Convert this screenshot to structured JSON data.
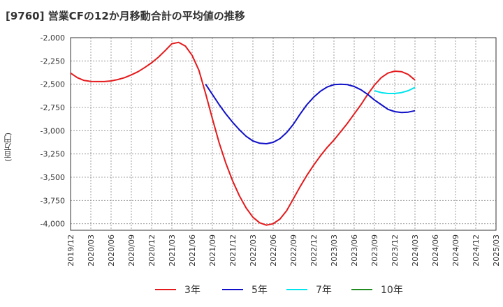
{
  "chart_data": {
    "type": "line",
    "title": "[9760]  営業CFの12か月移動合計の平均値の推移",
    "ylabel": "(百万円)",
    "xlabel": "",
    "ylim": [
      -4070,
      -2000
    ],
    "yticks": [
      -2000,
      -2250,
      -2500,
      -2750,
      -3000,
      -3250,
      -3500,
      -3750,
      -4000
    ],
    "ytick_labels": [
      "-2,000",
      "-2,250",
      "-2,500",
      "-2,750",
      "-3,000",
      "-3,250",
      "-3,500",
      "-3,750",
      "-4,000"
    ],
    "xticks": [
      "2019/12",
      "2020/03",
      "2020/06",
      "2020/09",
      "2020/12",
      "2021/03",
      "2021/06",
      "2021/09",
      "2021/12",
      "2022/03",
      "2022/06",
      "2022/09",
      "2022/12",
      "2023/03",
      "2023/06",
      "2023/09",
      "2023/12",
      "2024/03",
      "2024/06",
      "2024/09",
      "2024/12",
      "2025/03"
    ],
    "grid": true,
    "legend_position": "bottom",
    "series": [
      {
        "name": "3年",
        "color": "#e41a1c",
        "points": [
          [
            "2019/12",
            -2380
          ],
          [
            "2020/01",
            -2430
          ],
          [
            "2020/02",
            -2460
          ],
          [
            "2020/03",
            -2470
          ],
          [
            "2020/04",
            -2472
          ],
          [
            "2020/05",
            -2472
          ],
          [
            "2020/06",
            -2465
          ],
          [
            "2020/07",
            -2450
          ],
          [
            "2020/08",
            -2430
          ],
          [
            "2020/09",
            -2400
          ],
          [
            "2020/10",
            -2365
          ],
          [
            "2020/11",
            -2320
          ],
          [
            "2020/12",
            -2270
          ],
          [
            "2021/01",
            -2210
          ],
          [
            "2021/02",
            -2140
          ],
          [
            "2021/03",
            -2065
          ],
          [
            "2021/04",
            -2050
          ],
          [
            "2021/05",
            -2090
          ],
          [
            "2021/06",
            -2190
          ],
          [
            "2021/07",
            -2350
          ],
          [
            "2021/08",
            -2600
          ],
          [
            "2021/09",
            -2870
          ],
          [
            "2021/10",
            -3130
          ],
          [
            "2021/11",
            -3350
          ],
          [
            "2021/12",
            -3540
          ],
          [
            "2022/01",
            -3700
          ],
          [
            "2022/02",
            -3830
          ],
          [
            "2022/03",
            -3930
          ],
          [
            "2022/04",
            -3990
          ],
          [
            "2022/05",
            -4015
          ],
          [
            "2022/06",
            -4000
          ],
          [
            "2022/07",
            -3950
          ],
          [
            "2022/08",
            -3860
          ],
          [
            "2022/09",
            -3730
          ],
          [
            "2022/10",
            -3600
          ],
          [
            "2022/11",
            -3480
          ],
          [
            "2022/12",
            -3370
          ],
          [
            "2023/01",
            -3270
          ],
          [
            "2023/02",
            -3180
          ],
          [
            "2023/03",
            -3100
          ],
          [
            "2023/04",
            -3010
          ],
          [
            "2023/05",
            -2920
          ],
          [
            "2023/06",
            -2820
          ],
          [
            "2023/07",
            -2720
          ],
          [
            "2023/08",
            -2610
          ],
          [
            "2023/09",
            -2510
          ],
          [
            "2023/10",
            -2430
          ],
          [
            "2023/11",
            -2380
          ],
          [
            "2023/12",
            -2360
          ],
          [
            "2024/01",
            -2365
          ],
          [
            "2024/02",
            -2395
          ],
          [
            "2024/03",
            -2455
          ]
        ]
      },
      {
        "name": "5年",
        "color": "#1010c8",
        "points": [
          [
            "2021/08",
            -2500
          ],
          [
            "2021/09",
            -2610
          ],
          [
            "2021/10",
            -2720
          ],
          [
            "2021/11",
            -2820
          ],
          [
            "2021/12",
            -2910
          ],
          [
            "2022/01",
            -2990
          ],
          [
            "2022/02",
            -3060
          ],
          [
            "2022/03",
            -3110
          ],
          [
            "2022/04",
            -3135
          ],
          [
            "2022/05",
            -3140
          ],
          [
            "2022/06",
            -3125
          ],
          [
            "2022/07",
            -3085
          ],
          [
            "2022/08",
            -3020
          ],
          [
            "2022/09",
            -2930
          ],
          [
            "2022/10",
            -2820
          ],
          [
            "2022/11",
            -2720
          ],
          [
            "2022/12",
            -2640
          ],
          [
            "2023/01",
            -2575
          ],
          [
            "2023/02",
            -2530
          ],
          [
            "2023/03",
            -2505
          ],
          [
            "2023/04",
            -2500
          ],
          [
            "2023/05",
            -2505
          ],
          [
            "2023/06",
            -2525
          ],
          [
            "2023/07",
            -2560
          ],
          [
            "2023/08",
            -2610
          ],
          [
            "2023/09",
            -2670
          ],
          [
            "2023/10",
            -2720
          ],
          [
            "2023/11",
            -2770
          ],
          [
            "2023/12",
            -2795
          ],
          [
            "2024/01",
            -2805
          ],
          [
            "2024/02",
            -2800
          ],
          [
            "2024/03",
            -2785
          ]
        ]
      },
      {
        "name": "7年",
        "color": "#00e5ee",
        "points": [
          [
            "2023/09",
            -2570
          ],
          [
            "2023/10",
            -2590
          ],
          [
            "2023/11",
            -2600
          ],
          [
            "2023/12",
            -2600
          ],
          [
            "2024/01",
            -2590
          ],
          [
            "2024/02",
            -2570
          ],
          [
            "2024/03",
            -2535
          ]
        ]
      },
      {
        "name": "10年",
        "color": "#228b22",
        "points": []
      }
    ]
  }
}
